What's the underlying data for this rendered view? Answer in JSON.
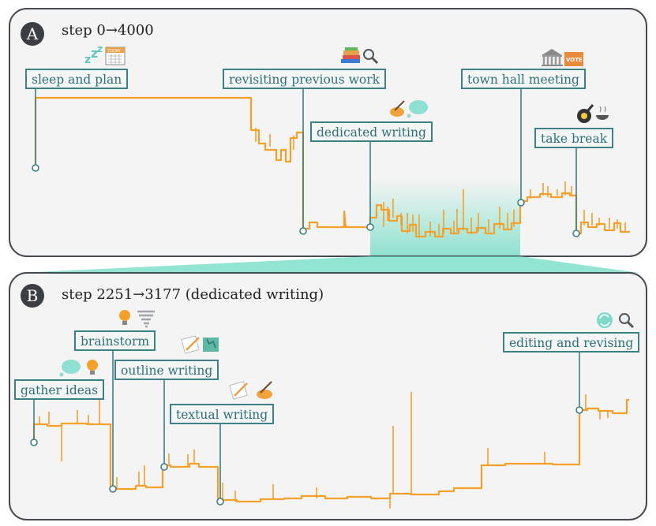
{
  "panel_a": {
    "badge": "A",
    "title": "step 0→4000",
    "labels": {
      "sleep": "sleep and plan",
      "revisit": "revisiting previous work",
      "dedicated": "dedicated writing",
      "townhall": "town hall meeting",
      "break": "take break"
    }
  },
  "panel_b": {
    "badge": "B",
    "title": "step 2251→3177 (dedicated writing)",
    "labels": {
      "gather": "gather ideas",
      "brainstorm": "brainstorm",
      "outline": "outline writing",
      "textual": "textual writing",
      "editing": "editing and revising"
    }
  },
  "icons": {
    "calendar_text": "TODAY",
    "vote_text": "VOTE"
  },
  "colors": {
    "trace": "#f5a02a",
    "label_border": "#3f7f86",
    "label_text": "#2e6f78",
    "highlight": "#6fdcc4",
    "panel_border": "#444a4f"
  }
}
